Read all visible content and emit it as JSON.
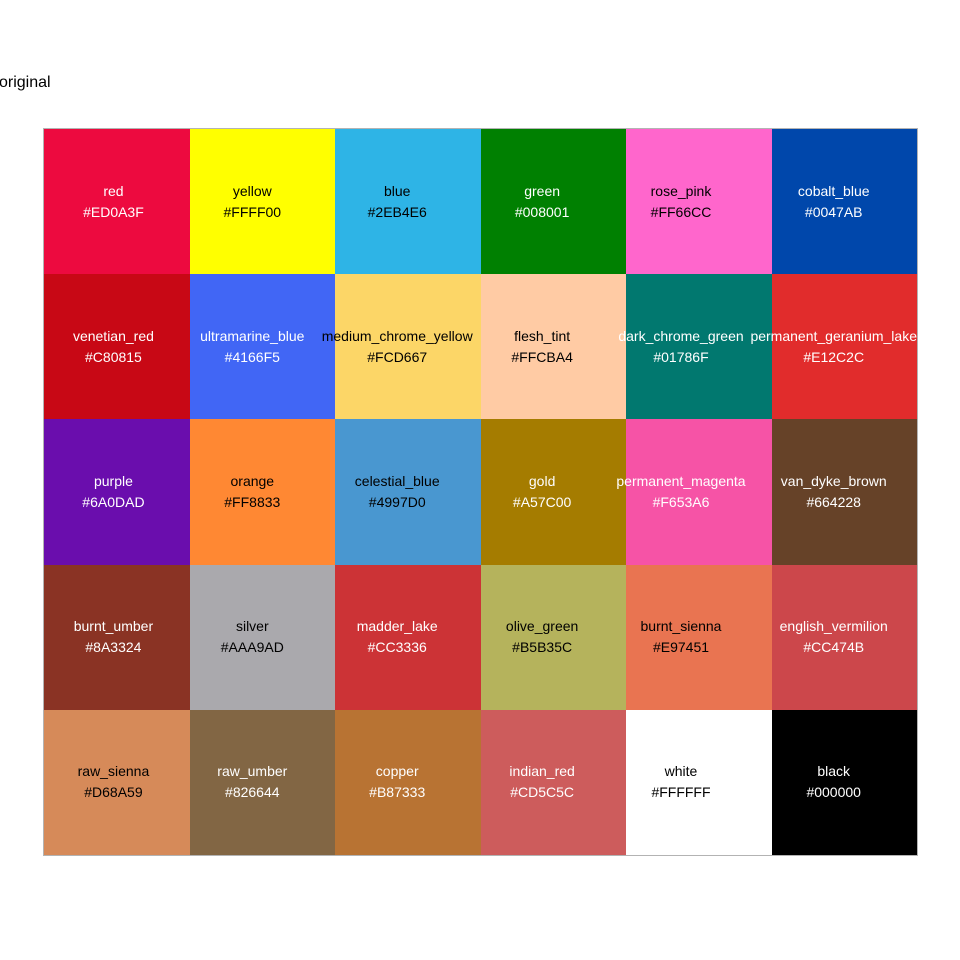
{
  "title": "original",
  "figure": {
    "background": "#FFFFFF",
    "panel_border_color": "#B3B3B3"
  },
  "chart_data": {
    "type": "table",
    "title": "original",
    "description": "Color palette swatch grid: each cell shows a color name and its hex value on a filled background of that color",
    "rows": 5,
    "cols": 6,
    "grid_lines": "off",
    "legend_position": "none",
    "cells": [
      {
        "name": "red",
        "hex": "#ED0A3F",
        "label_color": "#FFFFFF"
      },
      {
        "name": "yellow",
        "hex": "#FFFF00",
        "label_color": "#000000"
      },
      {
        "name": "blue",
        "hex": "#2EB4E6",
        "label_color": "#000000"
      },
      {
        "name": "green",
        "hex": "#008001",
        "label_color": "#FFFFFF"
      },
      {
        "name": "rose_pink",
        "hex": "#FF66CC",
        "label_color": "#000000"
      },
      {
        "name": "cobalt_blue",
        "hex": "#0047AB",
        "label_color": "#FFFFFF"
      },
      {
        "name": "venetian_red",
        "hex": "#C80815",
        "label_color": "#FFFFFF"
      },
      {
        "name": "ultramarine_blue",
        "hex": "#4166F5",
        "label_color": "#FFFFFF"
      },
      {
        "name": "medium_chrome_yellow",
        "hex": "#FCD667",
        "label_color": "#000000"
      },
      {
        "name": "flesh_tint",
        "hex": "#FFCBA4",
        "label_color": "#000000"
      },
      {
        "name": "dark_chrome_green",
        "hex": "#01786F",
        "label_color": "#FFFFFF"
      },
      {
        "name": "permanent_geranium_lake",
        "hex": "#E12C2C",
        "label_color": "#FFFFFF"
      },
      {
        "name": "purple",
        "hex": "#6A0DAD",
        "label_color": "#FFFFFF"
      },
      {
        "name": "orange",
        "hex": "#FF8833",
        "label_color": "#000000"
      },
      {
        "name": "celestial_blue",
        "hex": "#4997D0",
        "label_color": "#000000"
      },
      {
        "name": "gold",
        "hex": "#A57C00",
        "label_color": "#FFFFFF"
      },
      {
        "name": "permanent_magenta",
        "hex": "#F653A6",
        "label_color": "#FFFFFF"
      },
      {
        "name": "van_dyke_brown",
        "hex": "#664228",
        "label_color": "#FFFFFF"
      },
      {
        "name": "burnt_umber",
        "hex": "#8A3324",
        "label_color": "#FFFFFF"
      },
      {
        "name": "silver",
        "hex": "#AAA9AD",
        "label_color": "#000000"
      },
      {
        "name": "madder_lake",
        "hex": "#CC3336",
        "label_color": "#FFFFFF"
      },
      {
        "name": "olive_green",
        "hex": "#B5B35C",
        "label_color": "#000000"
      },
      {
        "name": "burnt_sienna",
        "hex": "#E97451",
        "label_color": "#000000"
      },
      {
        "name": "english_vermilion",
        "hex": "#CC474B",
        "label_color": "#FFFFFF"
      },
      {
        "name": "raw_sienna",
        "hex": "#D68A59",
        "label_color": "#000000"
      },
      {
        "name": "raw_umber",
        "hex": "#826644",
        "label_color": "#FFFFFF"
      },
      {
        "name": "copper",
        "hex": "#B87333",
        "label_color": "#FFFFFF"
      },
      {
        "name": "indian_red",
        "hex": "#CD5C5C",
        "label_color": "#FFFFFF"
      },
      {
        "name": "white",
        "hex": "#FFFFFF",
        "label_color": "#000000"
      },
      {
        "name": "black",
        "hex": "#000000",
        "label_color": "#FFFFFF"
      }
    ]
  }
}
